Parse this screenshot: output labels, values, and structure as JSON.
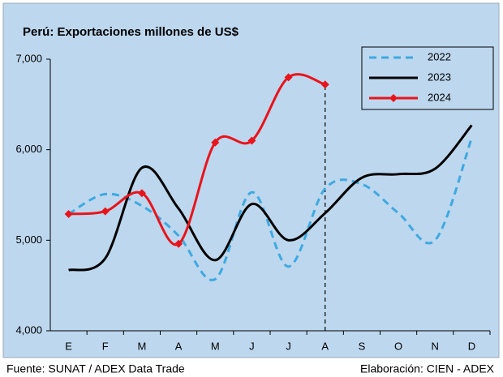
{
  "chart_data": {
    "type": "line",
    "title": "Perú: Exportaciones millones de US$",
    "source": "Fuente: SUNAT / ADEX Data Trade",
    "credit": "Elaboración: CIEN - ADEX",
    "categories": [
      "E",
      "F",
      "M",
      "A",
      "M",
      "J",
      "J",
      "A",
      "S",
      "O",
      "N",
      "D"
    ],
    "series": [
      {
        "name": "2022",
        "color": "#3fa9e0",
        "dash": true,
        "values": [
          5290,
          5510,
          5380,
          5050,
          4570,
          5530,
          4710,
          5570,
          5620,
          5300,
          5000,
          6130
        ]
      },
      {
        "name": "2023",
        "color": "#000000",
        "values": [
          4670,
          4800,
          5800,
          5350,
          4780,
          5400,
          5000,
          5300,
          5690,
          5730,
          5790,
          6270
        ]
      },
      {
        "name": "2024",
        "color": "#e8141b",
        "marker": "diamond",
        "values": [
          5290,
          5320,
          5520,
          4960,
          6080,
          6100,
          6800,
          6720,
          null,
          null,
          null,
          null
        ]
      }
    ],
    "ylim": [
      4000,
      7000
    ],
    "yticks": [
      {
        "value": 4000,
        "label": "4,000"
      },
      {
        "value": 5000,
        "label": "5,000"
      },
      {
        "value": 6000,
        "label": "6,000"
      },
      {
        "value": 7000,
        "label": "7,000"
      }
    ],
    "legend": "top-right"
  }
}
